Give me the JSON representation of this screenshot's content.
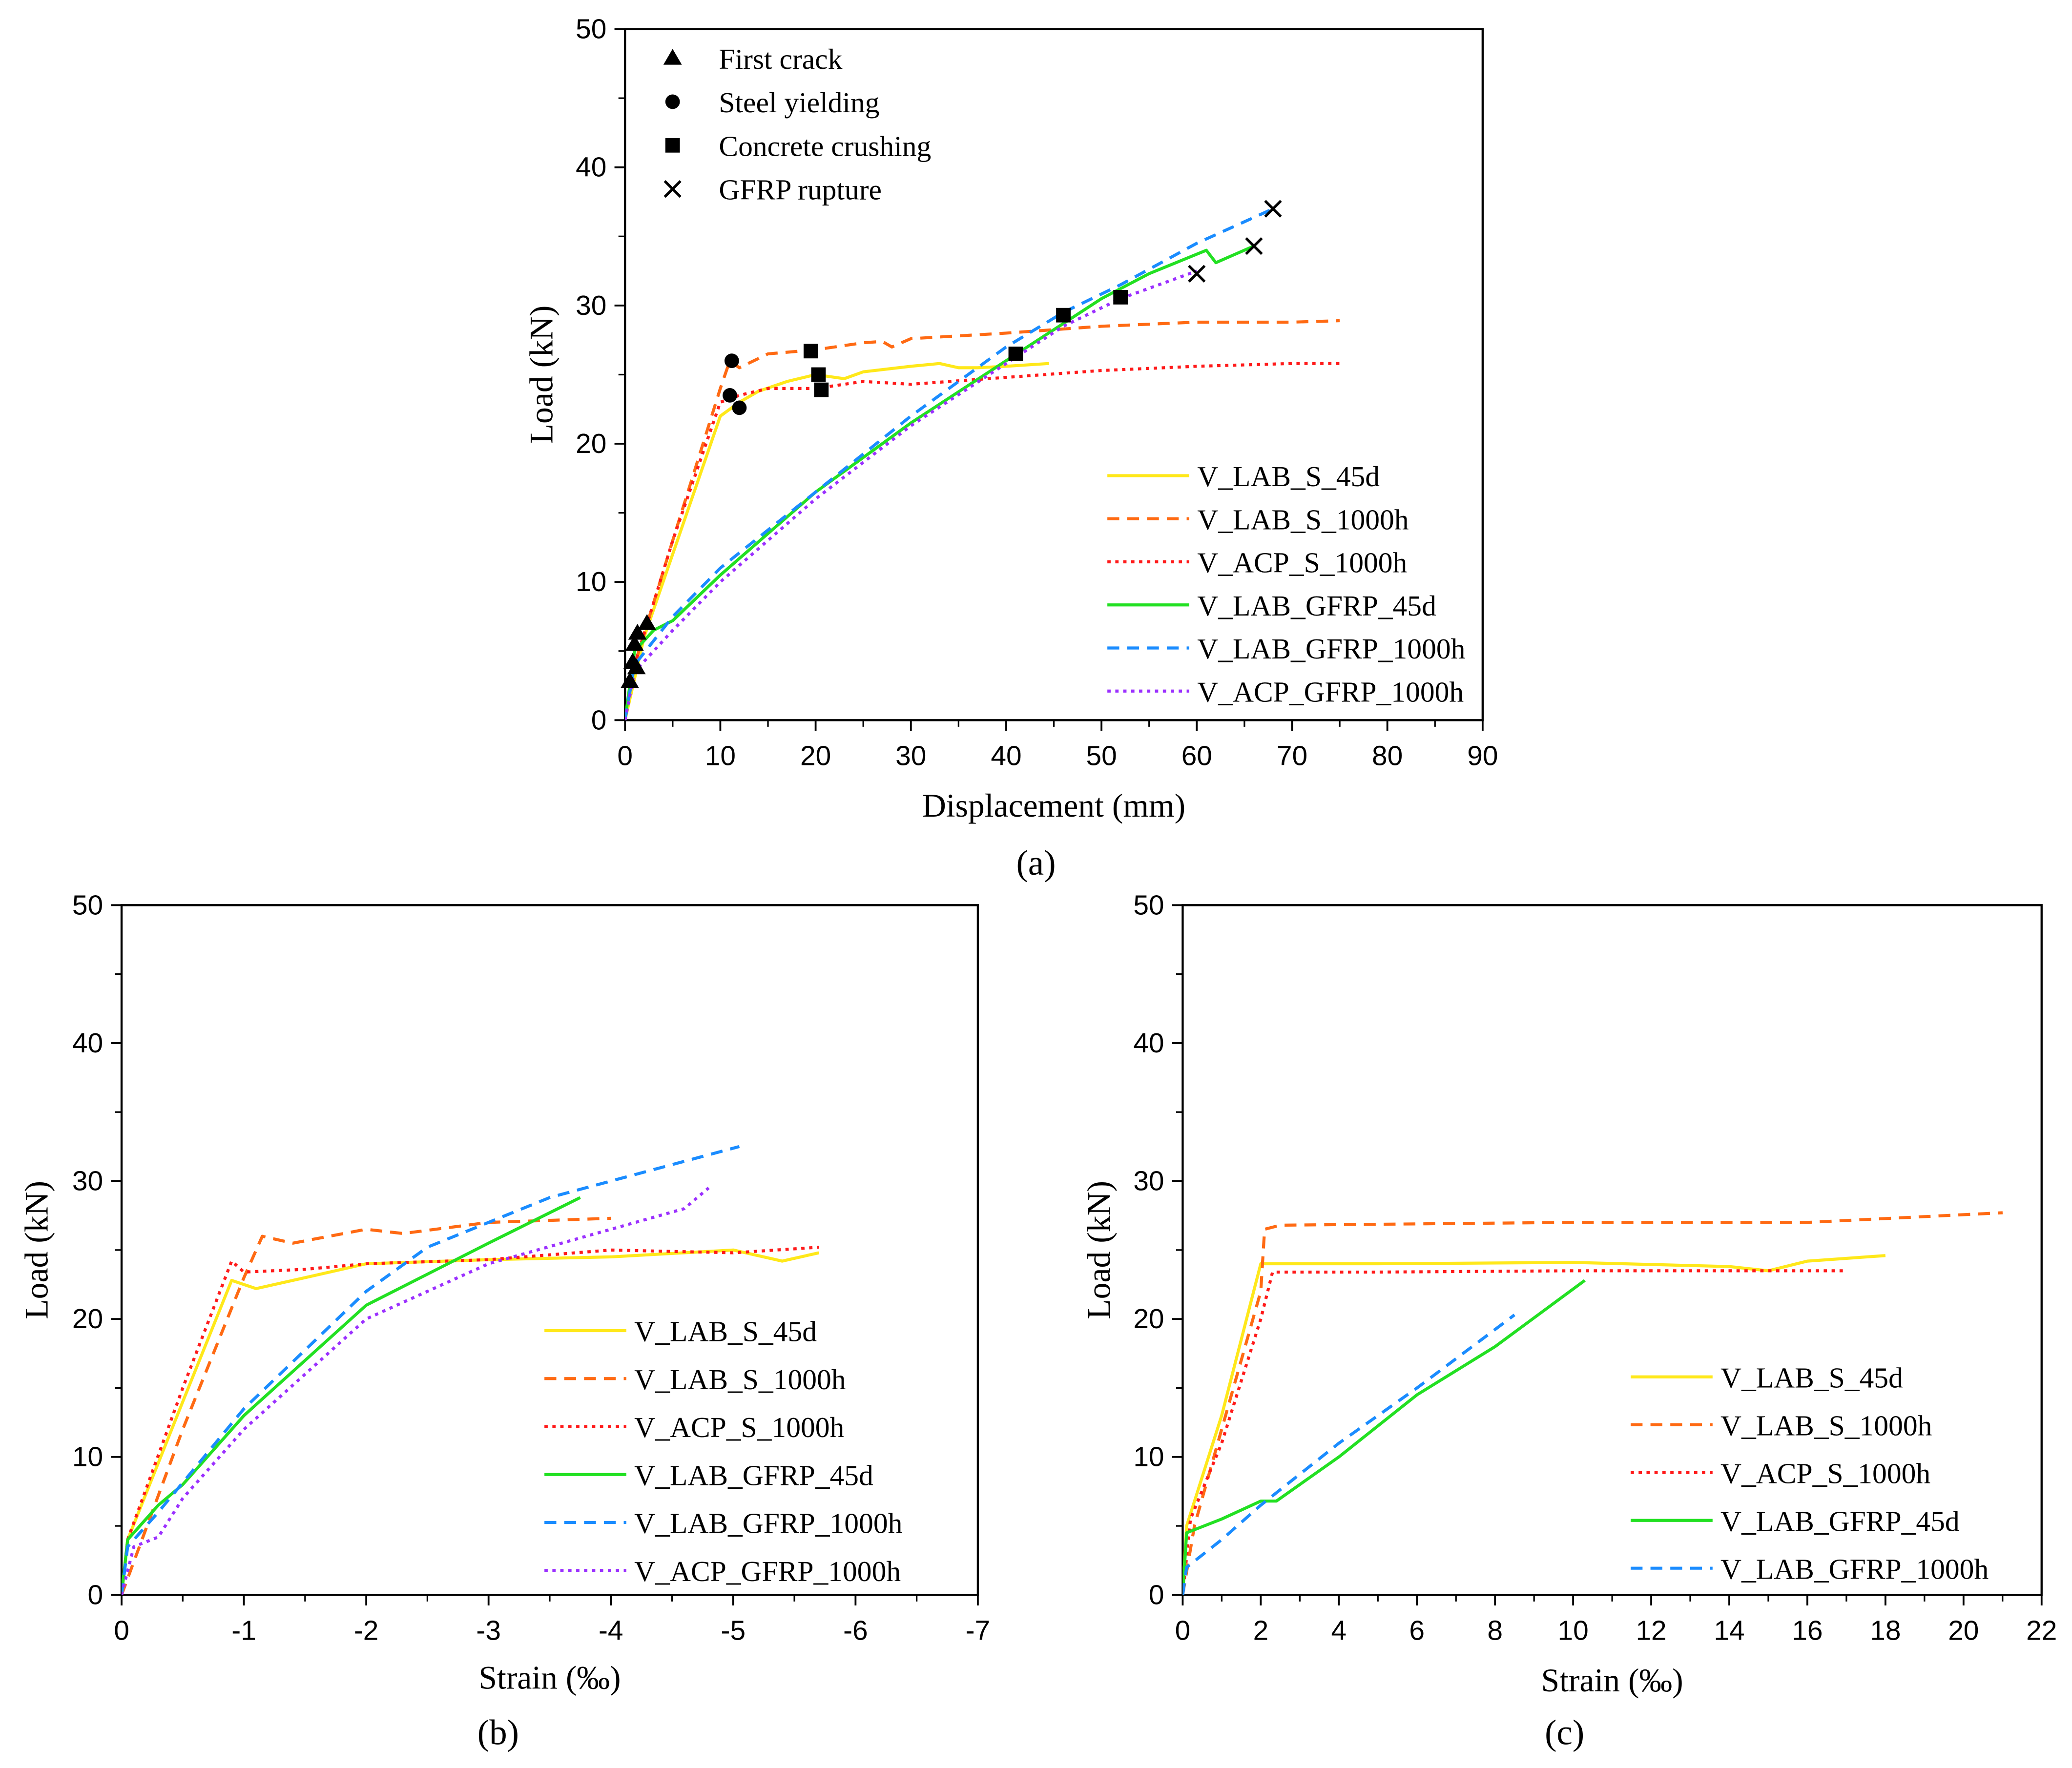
{
  "colors": {
    "yellow": "#FFE81A",
    "orange": "#FF6A13",
    "red": "#FF1A1A",
    "green": "#22E022",
    "blue": "#1A8CFF",
    "purple": "#9B30FF"
  },
  "chart_data": [
    {
      "id": "a",
      "type": "line",
      "caption": "(a)",
      "xlabel": "Displacement (mm)",
      "ylabel": "Load (kN)",
      "xlim": [
        0,
        90
      ],
      "ylim": [
        0,
        50
      ],
      "xticks": [
        0,
        10,
        20,
        30,
        40,
        50,
        60,
        70,
        80,
        90
      ],
      "xtick_labels": [
        "0",
        "10",
        "20",
        "30",
        "40",
        "50",
        "60",
        "70",
        "80",
        "90"
      ],
      "yticks": [
        0,
        10,
        20,
        30,
        40,
        50
      ],
      "ytick_labels": [
        "0",
        "10",
        "20",
        "30",
        "40",
        "50"
      ],
      "legend": "bottom-right",
      "series": [
        {
          "name": "V_LAB_S_45d",
          "color": "yellow",
          "style": "solid",
          "points": [
            [
              0,
              0
            ],
            [
              1,
              3
            ],
            [
              2,
              6
            ],
            [
              10,
              22
            ],
            [
              12,
              23
            ],
            [
              14,
              23.8
            ],
            [
              17,
              24.5
            ],
            [
              20,
              25
            ],
            [
              23,
              24.7
            ],
            [
              25,
              25.2
            ],
            [
              30,
              25.6
            ],
            [
              33,
              25.8
            ],
            [
              35,
              25.5
            ],
            [
              37,
              25.5
            ],
            [
              40,
              25.6
            ],
            [
              44.5,
              25.8
            ]
          ]
        },
        {
          "name": "V_LAB_S_1000h",
          "color": "orange",
          "style": "dash",
          "points": [
            [
              0,
              0
            ],
            [
              1,
              4
            ],
            [
              5,
              13
            ],
            [
              10,
              24
            ],
            [
              11,
              26
            ],
            [
              12,
              25.5
            ],
            [
              15,
              26.5
            ],
            [
              20,
              26.8
            ],
            [
              25,
              27.3
            ],
            [
              27,
              27.4
            ],
            [
              28,
              27
            ],
            [
              30,
              27.6
            ],
            [
              40,
              28
            ],
            [
              50,
              28.5
            ],
            [
              60,
              28.8
            ],
            [
              70,
              28.8
            ],
            [
              75,
              28.9
            ]
          ]
        },
        {
          "name": "V_ACP_S_1000h",
          "color": "red",
          "style": "dot",
          "points": [
            [
              0,
              0
            ],
            [
              1,
              4
            ],
            [
              5,
              13
            ],
            [
              10,
              23
            ],
            [
              12,
              23.5
            ],
            [
              15,
              24
            ],
            [
              20,
              24
            ],
            [
              25,
              24.5
            ],
            [
              30,
              24.3
            ],
            [
              40,
              24.8
            ],
            [
              50,
              25.3
            ],
            [
              60,
              25.6
            ],
            [
              70,
              25.8
            ],
            [
              75,
              25.8
            ]
          ]
        },
        {
          "name": "V_LAB_GFRP_45d",
          "color": "green",
          "style": "solid",
          "points": [
            [
              0,
              0
            ],
            [
              1,
              5
            ],
            [
              3,
              6.5
            ],
            [
              5,
              7.2
            ],
            [
              10,
              10.5
            ],
            [
              20,
              16.5
            ],
            [
              30,
              21.5
            ],
            [
              40,
              26
            ],
            [
              50,
              30.5
            ],
            [
              55,
              32.3
            ],
            [
              61,
              34
            ],
            [
              62,
              33.1
            ],
            [
              66,
              34.3
            ]
          ]
        },
        {
          "name": "V_LAB_GFRP_1000h",
          "color": "blue",
          "style": "dash",
          "points": [
            [
              0,
              0
            ],
            [
              1,
              4
            ],
            [
              5,
              7.5
            ],
            [
              10,
              11
            ],
            [
              20,
              16.5
            ],
            [
              30,
              22
            ],
            [
              40,
              27
            ],
            [
              46,
              29.5
            ],
            [
              52,
              31.5
            ],
            [
              60,
              34.5
            ],
            [
              68,
              37
            ]
          ]
        },
        {
          "name": "V_ACP_GFRP_1000h",
          "color": "purple",
          "style": "dot",
          "points": [
            [
              0,
              0
            ],
            [
              1,
              3.5
            ],
            [
              5,
              6.5
            ],
            [
              10,
              10
            ],
            [
              20,
              16
            ],
            [
              30,
              21.3
            ],
            [
              40,
              25.8
            ],
            [
              46,
              28.5
            ],
            [
              52,
              30.5
            ],
            [
              60,
              32.5
            ]
          ]
        }
      ],
      "markers": [
        {
          "name": "First crack",
          "shape": "triangle",
          "points": [
            [
              0.5,
              2.8
            ],
            [
              0.8,
              4.2
            ],
            [
              1.2,
              3.8
            ],
            [
              1,
              5.5
            ],
            [
              1.3,
              6.3
            ],
            [
              2.3,
              7
            ]
          ]
        },
        {
          "name": "Steel yielding",
          "shape": "circle",
          "points": [
            [
              11.2,
              26
            ],
            [
              11,
              23.5
            ],
            [
              12,
              22.6
            ]
          ]
        },
        {
          "name": "Concrete crushing",
          "shape": "square",
          "points": [
            [
              19.5,
              26.7
            ],
            [
              20.3,
              25
            ],
            [
              20.6,
              23.9
            ],
            [
              41,
              26.5
            ],
            [
              46,
              29.3
            ],
            [
              52,
              30.6
            ]
          ]
        },
        {
          "name": "GFRP rupture",
          "shape": "cross",
          "points": [
            [
              68,
              37
            ],
            [
              66,
              34.3
            ],
            [
              60,
              32.3
            ]
          ]
        }
      ]
    },
    {
      "id": "b",
      "type": "line",
      "caption": "(b)",
      "xlabel": "Strain (‰)",
      "ylabel": "Load (kN)",
      "xlim": [
        0,
        -7
      ],
      "ylim": [
        0,
        50
      ],
      "xticks": [
        0,
        -1,
        -2,
        -3,
        -4,
        -5,
        -6,
        -7
      ],
      "xtick_labels": [
        "0",
        "-1",
        "-2",
        "-3",
        "-4",
        "-5",
        "-6",
        "-7"
      ],
      "yticks": [
        0,
        10,
        20,
        30,
        40,
        50
      ],
      "ytick_labels": [
        "0",
        "10",
        "20",
        "30",
        "40",
        "50"
      ],
      "legend": "bottom-right",
      "series": [
        {
          "name": "V_LAB_S_45d",
          "color": "yellow",
          "style": "solid",
          "points": [
            [
              0,
              0
            ],
            [
              -0.05,
              4
            ],
            [
              -0.5,
              14
            ],
            [
              -0.9,
              22.8
            ],
            [
              -1.1,
              22.2
            ],
            [
              -1.5,
              23
            ],
            [
              -2,
              24
            ],
            [
              -3,
              24.3
            ],
            [
              -4,
              24.5
            ],
            [
              -5,
              25
            ],
            [
              -5.4,
              24.2
            ],
            [
              -5.7,
              24.8
            ]
          ]
        },
        {
          "name": "V_LAB_S_1000h",
          "color": "orange",
          "style": "dash",
          "points": [
            [
              0,
              0
            ],
            [
              -0.5,
              12
            ],
            [
              -1,
              23
            ],
            [
              -1.15,
              26
            ],
            [
              -1.4,
              25.5
            ],
            [
              -2,
              26.5
            ],
            [
              -2.3,
              26.2
            ],
            [
              -3,
              27
            ],
            [
              -4,
              27.3
            ]
          ]
        },
        {
          "name": "V_ACP_S_1000h",
          "color": "red",
          "style": "dot",
          "points": [
            [
              0,
              0
            ],
            [
              -0.05,
              4
            ],
            [
              -0.5,
              15
            ],
            [
              -0.9,
              24.2
            ],
            [
              -1,
              23.4
            ],
            [
              -1.5,
              23.6
            ],
            [
              -2,
              24
            ],
            [
              -3,
              24.3
            ],
            [
              -4,
              25
            ],
            [
              -5,
              24.8
            ],
            [
              -5.7,
              25.2
            ]
          ]
        },
        {
          "name": "V_LAB_GFRP_45d",
          "color": "green",
          "style": "solid",
          "points": [
            [
              0,
              0
            ],
            [
              -0.05,
              4
            ],
            [
              -0.3,
              6.5
            ],
            [
              -0.5,
              8
            ],
            [
              -1,
              13
            ],
            [
              -2,
              21
            ],
            [
              -3,
              25.5
            ],
            [
              -3.75,
              28.8
            ]
          ]
        },
        {
          "name": "V_LAB_GFRP_1000h",
          "color": "blue",
          "style": "dash",
          "points": [
            [
              0,
              0
            ],
            [
              -0.05,
              3.5
            ],
            [
              -0.3,
              6
            ],
            [
              -1,
              13.5
            ],
            [
              -2,
              22
            ],
            [
              -2.5,
              25.2
            ],
            [
              -3,
              27
            ],
            [
              -3.5,
              28.8
            ],
            [
              -4,
              30
            ],
            [
              -5.05,
              32.5
            ]
          ]
        },
        {
          "name": "V_ACP_GFRP_1000h",
          "color": "purple",
          "style": "dot",
          "points": [
            [
              0,
              0
            ],
            [
              -0.1,
              3.5
            ],
            [
              -0.3,
              4.2
            ],
            [
              -0.5,
              7
            ],
            [
              -1,
              12
            ],
            [
              -2,
              20
            ],
            [
              -3,
              24
            ],
            [
              -4,
              26.5
            ],
            [
              -4.6,
              28
            ],
            [
              -4.8,
              29.5
            ]
          ]
        }
      ]
    },
    {
      "id": "c",
      "type": "line",
      "caption": "(c)",
      "xlabel": "Strain (‰)",
      "ylabel": "Load (kN)",
      "xlim": [
        0,
        22
      ],
      "ylim": [
        0,
        50
      ],
      "xticks": [
        0,
        2,
        4,
        6,
        8,
        10,
        12,
        14,
        16,
        18,
        20,
        22
      ],
      "xtick_labels": [
        "0",
        "2",
        "4",
        "6",
        "8",
        "10",
        "12",
        "14",
        "16",
        "18",
        "20",
        "22"
      ],
      "yticks": [
        0,
        10,
        20,
        30,
        40,
        50
      ],
      "ytick_labels": [
        "0",
        "10",
        "20",
        "30",
        "40",
        "50"
      ],
      "legend": "bottom-right",
      "series": [
        {
          "name": "V_LAB_S_45d",
          "color": "yellow",
          "style": "solid",
          "points": [
            [
              0,
              0
            ],
            [
              0.1,
              5
            ],
            [
              1,
              13
            ],
            [
              2,
              24
            ],
            [
              5,
              24
            ],
            [
              10,
              24.1
            ],
            [
              14,
              23.8
            ],
            [
              15,
              23.5
            ],
            [
              16,
              24.2
            ],
            [
              18,
              24.6
            ]
          ]
        },
        {
          "name": "V_LAB_S_1000h",
          "color": "orange",
          "style": "dash",
          "points": [
            [
              0,
              0
            ],
            [
              0.3,
              5
            ],
            [
              1,
              12
            ],
            [
              2,
              22
            ],
            [
              2.1,
              26.5
            ],
            [
              2.5,
              26.8
            ],
            [
              10,
              27
            ],
            [
              16,
              27
            ],
            [
              21,
              27.7
            ]
          ]
        },
        {
          "name": "V_ACP_S_1000h",
          "color": "red",
          "style": "dot",
          "points": [
            [
              0,
              0
            ],
            [
              0.2,
              5.5
            ],
            [
              1,
              11
            ],
            [
              2,
              20
            ],
            [
              2.3,
              23.4
            ],
            [
              5,
              23.4
            ],
            [
              10,
              23.5
            ],
            [
              17,
              23.5
            ]
          ]
        },
        {
          "name": "V_LAB_GFRP_45d",
          "color": "green",
          "style": "solid",
          "points": [
            [
              0,
              0
            ],
            [
              0.1,
              4.5
            ],
            [
              1,
              5.5
            ],
            [
              2,
              6.8
            ],
            [
              2.4,
              6.8
            ],
            [
              4,
              10
            ],
            [
              6,
              14.5
            ],
            [
              8,
              18
            ],
            [
              10.3,
              22.8
            ]
          ]
        },
        {
          "name": "V_LAB_GFRP_1000h",
          "color": "blue",
          "style": "dash",
          "points": [
            [
              0,
              0
            ],
            [
              0.1,
              2
            ],
            [
              1,
              4
            ],
            [
              2,
              6.5
            ],
            [
              4,
              11
            ],
            [
              6,
              15
            ],
            [
              8.5,
              20.3
            ]
          ]
        }
      ]
    }
  ]
}
